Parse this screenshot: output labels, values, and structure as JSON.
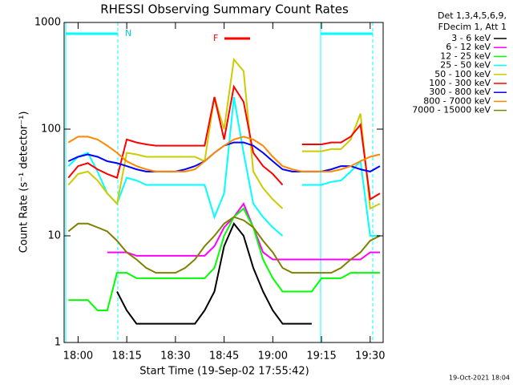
{
  "chart_data": {
    "type": "line",
    "title": "RHESSI Observing Summary Count Rates",
    "xlabel": "Start Time (19-Sep-02 17:55:42)",
    "ylabel": "Count Rate (s⁻¹ detector⁻¹)",
    "legend_title": [
      "Det 1,3,4,5,6,9,",
      "FDecim 1, Att 1"
    ],
    "annotations": [
      "N",
      "F"
    ],
    "timestamp": "19-Oct-2021 18:04",
    "log_y": true,
    "xlim": [
      "17:55:42",
      "19:34"
    ],
    "xticks": [
      "18:00",
      "18:15",
      "18:30",
      "18:45",
      "19:00",
      "19:15",
      "19:30"
    ],
    "ylim": [
      1,
      1000
    ],
    "yticks": [
      1,
      10,
      100,
      1000
    ],
    "legend": "right",
    "x": [
      "17:57",
      "18:00",
      "18:03",
      "18:06",
      "18:09",
      "18:12",
      "18:15",
      "18:18",
      "18:21",
      "18:24",
      "18:27",
      "18:30",
      "18:33",
      "18:36",
      "18:39",
      "18:42",
      "18:45",
      "18:48",
      "18:51",
      "18:54",
      "18:57",
      "19:00",
      "19:03",
      "19:06",
      "19:09",
      "19:12",
      "19:15",
      "19:18",
      "19:21",
      "19:24",
      "19:27",
      "19:30",
      "19:33"
    ],
    "series": [
      {
        "name": "3 - 6 keV",
        "color": "#000000",
        "values": [
          null,
          null,
          null,
          null,
          null,
          3,
          2,
          1.5,
          1.5,
          1.5,
          1.5,
          1.5,
          1.5,
          1.5,
          2,
          3,
          8,
          13,
          10,
          5,
          3,
          2,
          1.5,
          1.5,
          1.5,
          1.5,
          null,
          null,
          null,
          null,
          null,
          null,
          null
        ]
      },
      {
        "name": "6 - 12 keV",
        "color": "#ff00ff",
        "values": [
          null,
          null,
          null,
          null,
          7,
          7,
          7,
          6.5,
          6.5,
          6.5,
          6.5,
          6.5,
          6.5,
          6.5,
          6.5,
          8,
          12,
          15,
          20,
          12,
          7,
          6,
          6,
          6,
          6,
          6,
          6,
          6,
          6,
          6,
          6,
          7,
          7
        ]
      },
      {
        "name": "12 - 25 keV",
        "color": "#00ff00",
        "values": [
          2.5,
          2.5,
          2.5,
          2,
          2,
          4.5,
          4.5,
          4,
          4,
          4,
          4,
          4,
          4,
          4,
          4,
          5,
          10,
          15,
          18,
          12,
          6,
          4,
          3,
          3,
          3,
          3,
          4,
          4,
          4,
          4.5,
          4.5,
          4.5,
          4.5
        ]
      },
      {
        "name": "25 - 50 keV",
        "color": "#00ffff",
        "values": [
          45,
          55,
          60,
          40,
          25,
          20,
          35,
          33,
          30,
          30,
          30,
          30,
          30,
          30,
          30,
          15,
          25,
          200,
          60,
          20,
          15,
          12,
          10,
          null,
          30,
          30,
          30,
          32,
          33,
          40,
          50,
          10,
          10
        ]
      },
      {
        "name": "50 - 100 keV",
        "color": "#cccc00",
        "values": [
          30,
          38,
          40,
          33,
          25,
          20,
          60,
          58,
          55,
          55,
          55,
          55,
          55,
          55,
          50,
          200,
          100,
          450,
          350,
          40,
          28,
          22,
          18,
          null,
          62,
          62,
          62,
          65,
          65,
          80,
          140,
          18,
          20
        ]
      },
      {
        "name": "100 - 300 keV",
        "color": "#ff0000",
        "values": [
          35,
          45,
          48,
          42,
          38,
          35,
          80,
          75,
          72,
          70,
          70,
          70,
          70,
          70,
          70,
          200,
          80,
          250,
          180,
          60,
          45,
          38,
          30,
          null,
          72,
          72,
          72,
          75,
          75,
          85,
          110,
          22,
          25
        ]
      },
      {
        "name": "300 - 800 keV",
        "color": "#0000ff",
        "values": [
          50,
          55,
          58,
          55,
          50,
          48,
          45,
          42,
          40,
          40,
          40,
          40,
          42,
          45,
          50,
          60,
          70,
          75,
          75,
          70,
          60,
          50,
          42,
          40,
          40,
          40,
          40,
          42,
          45,
          45,
          42,
          40,
          45
        ]
      },
      {
        "name": "800 - 7000 keV",
        "color": "#ff8800",
        "values": [
          75,
          85,
          85,
          80,
          70,
          60,
          50,
          45,
          42,
          40,
          40,
          40,
          40,
          42,
          50,
          60,
          70,
          80,
          85,
          80,
          70,
          55,
          45,
          42,
          40,
          40,
          40,
          40,
          42,
          45,
          50,
          55,
          58
        ]
      },
      {
        "name": "7000 - 15000 keV",
        "color": "#808000",
        "values": [
          11,
          13,
          13,
          12,
          11,
          9,
          7,
          6,
          5,
          4.5,
          4.5,
          4.5,
          5,
          6,
          8,
          10,
          13,
          15,
          14,
          12,
          9,
          7,
          5,
          4.5,
          4.5,
          4.5,
          4.5,
          4.5,
          5,
          6,
          7,
          9,
          10
        ]
      }
    ]
  }
}
